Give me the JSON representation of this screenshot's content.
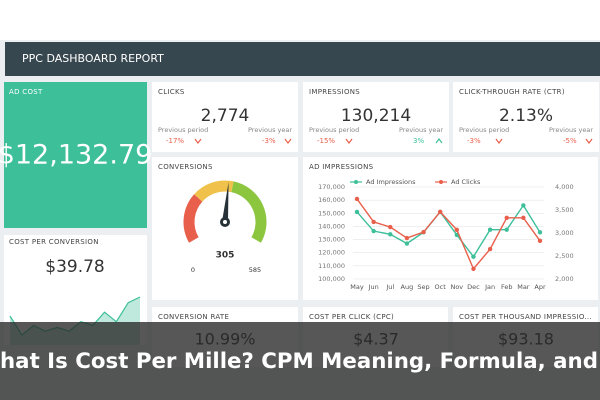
{
  "header": {
    "title": "PPC DASHBOARD REPORT"
  },
  "ad_cost": {
    "label": "AD COST",
    "value": "$12,132.79"
  },
  "kpis": [
    {
      "label": "CLICKS",
      "value": "2,774",
      "prev_period_label": "Previous period",
      "prev_period": "-17%",
      "prev_year_label": "Previous year",
      "prev_year": "-3%"
    },
    {
      "label": "IMPRESSIONS",
      "value": "130,214",
      "prev_period_label": "Previous period",
      "prev_period": "-15%",
      "prev_year_label": "Previous year",
      "prev_year": "3%"
    },
    {
      "label": "CLICK-THROUGH RATE (CTR)",
      "value": "2.13%",
      "prev_period_label": "Previous period",
      "prev_period": "-3%",
      "prev_year_label": "Previous year",
      "prev_year": "-5%"
    }
  ],
  "conversions": {
    "label": "CONVERSIONS",
    "value": 305,
    "min": 0,
    "max": 585
  },
  "cost_per_conversion": {
    "label": "COST PER CONVERSION",
    "value": "$39.78",
    "trend": [
      18,
      8,
      13,
      10,
      12,
      10,
      15,
      13,
      20,
      15,
      25,
      28
    ]
  },
  "ad_impressions": {
    "title": "AD IMPRESSIONS",
    "categories": [
      "May",
      "Jun",
      "Jul",
      "Aug",
      "Sep",
      "Oct",
      "Nov",
      "Dec",
      "Jan",
      "Feb",
      "Mar",
      "Apr"
    ],
    "ylim": [
      100000,
      170000
    ],
    "yticks": [
      {
        "value": 100000,
        "label": "100,000"
      },
      {
        "value": 110000,
        "label": "110,000"
      },
      {
        "value": 120000,
        "label": "120,000"
      },
      {
        "value": 130000,
        "label": "130,000"
      },
      {
        "value": 140000,
        "label": "140,000"
      },
      {
        "value": 150000,
        "label": "150,000"
      },
      {
        "value": 160000,
        "label": "160,000"
      },
      {
        "value": 170000,
        "label": "170,000"
      }
    ],
    "y2lim": [
      2000,
      4000
    ],
    "y2ticks": [
      {
        "value": 2000,
        "label": "2,000"
      },
      {
        "value": 2500,
        "label": "2,500"
      },
      {
        "value": 3000,
        "label": "3,000"
      },
      {
        "value": 3500,
        "label": "3,500"
      },
      {
        "value": 4000,
        "label": "4,000"
      }
    ],
    "series": [
      {
        "name": "Ad Impressions",
        "color": "#3dbf9a",
        "values": [
          151000,
          136500,
          134000,
          127000,
          135500,
          151000,
          133500,
          117000,
          137500,
          137500,
          156000,
          135500
        ]
      },
      {
        "name": "Ad Clicks",
        "color": "#e8604c",
        "axis": "y2",
        "values": [
          3740,
          3240,
          3130,
          2890,
          3020,
          3460,
          3070,
          2220,
          2650,
          3330,
          3330,
          2830
        ]
      }
    ]
  },
  "bottom_kpis": [
    {
      "label": "CONVERSION RATE",
      "value": "10.99%"
    },
    {
      "label": "COST PER CLICK (CPC)",
      "value": "$4.37"
    },
    {
      "label": "COST PER THOUSAND IMPRESSIO...",
      "value": "$93.18"
    }
  ],
  "overlay": {
    "title": "hat Is Cost Per Mille? CPM Meaning, Formula, and"
  }
}
